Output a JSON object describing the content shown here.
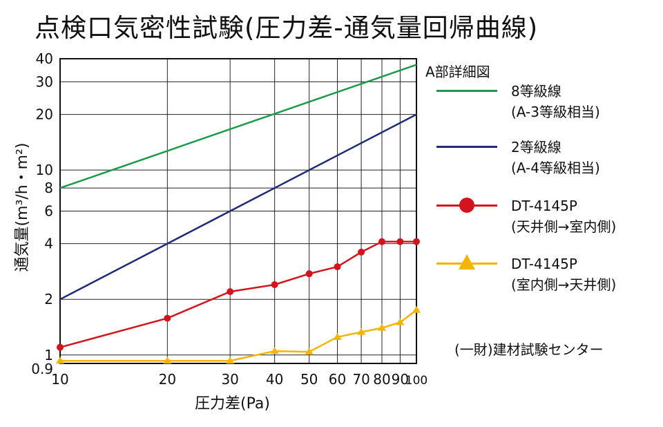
{
  "title": "点検口気密性試験(圧力差-通気量回帰曲線)",
  "chart_data": {
    "type": "line",
    "xlabel": "圧力差(Pa)",
    "ylabel": "通気量(m³/h・m²)",
    "x_scale": "log",
    "y_scale": "log",
    "xlim": [
      10,
      100
    ],
    "ylim": [
      0.9,
      40
    ],
    "x_ticks": [
      10,
      20,
      30,
      40,
      50,
      60,
      70,
      80,
      90,
      100
    ],
    "x_tick_labels": [
      "10",
      "20",
      "30",
      "40",
      "50",
      "60",
      "70",
      "80",
      "90",
      "100"
    ],
    "y_ticks": [
      0.9,
      1,
      2,
      4,
      6,
      8,
      10,
      20,
      30,
      40
    ],
    "y_tick_labels": [
      "0.9",
      "1",
      "2",
      "4",
      "6",
      "8",
      "10",
      "20",
      "30",
      "40"
    ],
    "grid": true,
    "legend_title": "A部詳細図",
    "legend_position": "right",
    "series": [
      {
        "name": "8等級線",
        "subtitle": "(A-3等級相当)",
        "color": "#1a9a4a",
        "marker": "none",
        "points": [
          [
            10,
            8
          ],
          [
            100,
            37.1
          ]
        ]
      },
      {
        "name": "2等級線",
        "subtitle": "(A-4等級相当)",
        "color": "#1f2a78",
        "marker": "none",
        "points": [
          [
            10,
            2
          ],
          [
            100,
            20
          ]
        ]
      },
      {
        "name": "DT-4145P",
        "subtitle": "(天井側→室内側)",
        "color": "#d4141c",
        "marker": "circle",
        "points": [
          [
            10,
            1.1
          ],
          [
            20,
            1.58
          ],
          [
            30,
            2.2
          ],
          [
            40,
            2.4
          ],
          [
            50,
            2.75
          ],
          [
            60,
            3.0
          ],
          [
            70,
            3.6
          ],
          [
            80,
            4.1
          ],
          [
            90,
            4.1
          ],
          [
            100,
            4.1
          ]
        ]
      },
      {
        "name": "DT-4145P",
        "subtitle": "(室内側→天井側)",
        "color": "#f5b400",
        "marker": "triangle",
        "points": [
          [
            10,
            0.93
          ],
          [
            20,
            0.93
          ],
          [
            30,
            0.93
          ],
          [
            40,
            1.05
          ],
          [
            50,
            1.04
          ],
          [
            60,
            1.25
          ],
          [
            70,
            1.33
          ],
          [
            80,
            1.4
          ],
          [
            90,
            1.5
          ],
          [
            100,
            1.75
          ]
        ]
      }
    ]
  },
  "source_note": "(一財)建材試験センター"
}
